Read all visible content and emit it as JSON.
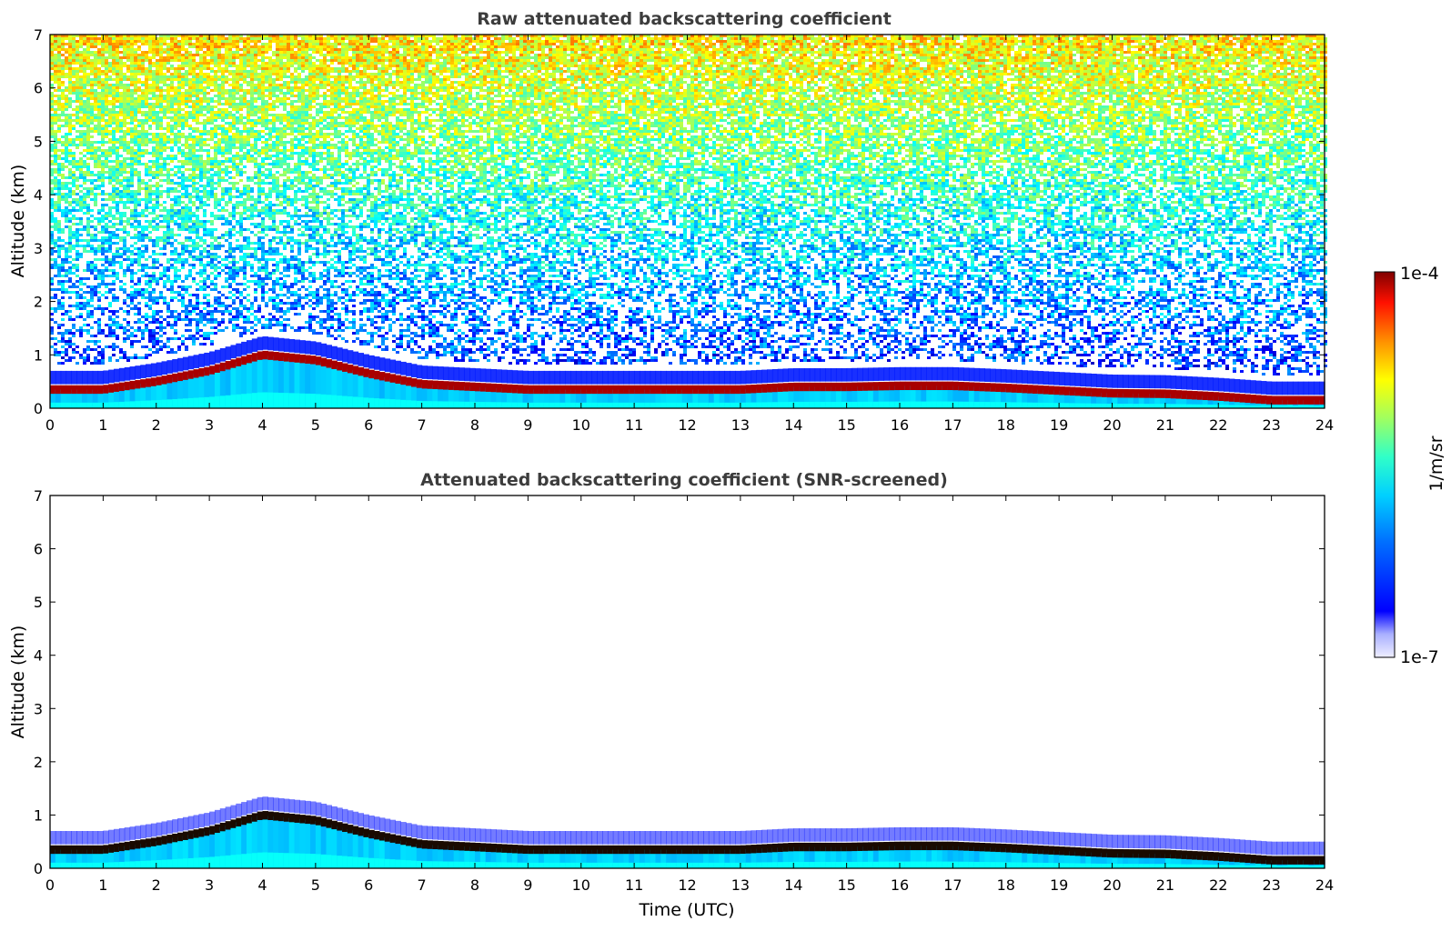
{
  "chart_data": [
    {
      "type": "heatmap",
      "title": "Raw attenuated backscattering coefficient",
      "xlabel": "",
      "ylabel": "Altitude (km)",
      "xlim": [
        0,
        24
      ],
      "ylim": [
        0,
        7
      ],
      "xticks": [
        "0",
        "1",
        "2",
        "3",
        "4",
        "5",
        "6",
        "7",
        "8",
        "9",
        "10",
        "11",
        "12",
        "13",
        "14",
        "15",
        "16",
        "17",
        "18",
        "19",
        "20",
        "21",
        "22",
        "23",
        "24"
      ],
      "yticks": [
        "0",
        "1",
        "2",
        "3",
        "4",
        "5",
        "6",
        "7"
      ],
      "boundary_layer_top_km": [
        [
          0,
          0.35
        ],
        [
          1,
          0.35
        ],
        [
          2,
          0.5
        ],
        [
          3,
          0.7
        ],
        [
          4,
          1.0
        ],
        [
          5,
          0.9
        ],
        [
          6,
          0.65
        ],
        [
          7,
          0.45
        ],
        [
          8,
          0.4
        ],
        [
          9,
          0.35
        ],
        [
          10,
          0.35
        ],
        [
          11,
          0.35
        ],
        [
          12,
          0.35
        ],
        [
          13,
          0.35
        ],
        [
          14,
          0.4
        ],
        [
          15,
          0.4
        ],
        [
          16,
          0.42
        ],
        [
          17,
          0.42
        ],
        [
          18,
          0.38
        ],
        [
          19,
          0.33
        ],
        [
          20,
          0.28
        ],
        [
          21,
          0.27
        ],
        [
          22,
          0.22
        ],
        [
          23,
          0.15
        ],
        [
          24,
          0.15
        ]
      ],
      "grid": false
    },
    {
      "type": "heatmap",
      "title": "Attenuated backscattering coefficient (SNR-screened)",
      "xlabel": "Time (UTC)",
      "ylabel": "Altitude (km)",
      "xlim": [
        0,
        24
      ],
      "ylim": [
        0,
        7
      ],
      "xticks": [
        "0",
        "1",
        "2",
        "3",
        "4",
        "5",
        "6",
        "7",
        "8",
        "9",
        "10",
        "11",
        "12",
        "13",
        "14",
        "15",
        "16",
        "17",
        "18",
        "19",
        "20",
        "21",
        "22",
        "23",
        "24"
      ],
      "yticks": [
        "0",
        "1",
        "2",
        "3",
        "4",
        "5",
        "6",
        "7"
      ],
      "boundary_layer_top_km": [
        [
          0,
          0.35
        ],
        [
          1,
          0.35
        ],
        [
          2,
          0.5
        ],
        [
          3,
          0.7
        ],
        [
          4,
          1.0
        ],
        [
          5,
          0.9
        ],
        [
          6,
          0.65
        ],
        [
          7,
          0.45
        ],
        [
          8,
          0.4
        ],
        [
          9,
          0.35
        ],
        [
          10,
          0.35
        ],
        [
          11,
          0.35
        ],
        [
          12,
          0.35
        ],
        [
          13,
          0.35
        ],
        [
          14,
          0.4
        ],
        [
          15,
          0.4
        ],
        [
          16,
          0.42
        ],
        [
          17,
          0.42
        ],
        [
          18,
          0.38
        ],
        [
          19,
          0.33
        ],
        [
          20,
          0.28
        ],
        [
          21,
          0.27
        ],
        [
          22,
          0.22
        ],
        [
          23,
          0.15
        ],
        [
          24,
          0.15
        ]
      ],
      "grid": false
    }
  ],
  "colorbar": {
    "max_label": "1e-4",
    "min_label": "1e-7",
    "unit_label": "1/m/sr",
    "scale": "log",
    "colormap": "jet"
  },
  "colors": {
    "title": "#3c3c3c",
    "frame": "#000000"
  }
}
